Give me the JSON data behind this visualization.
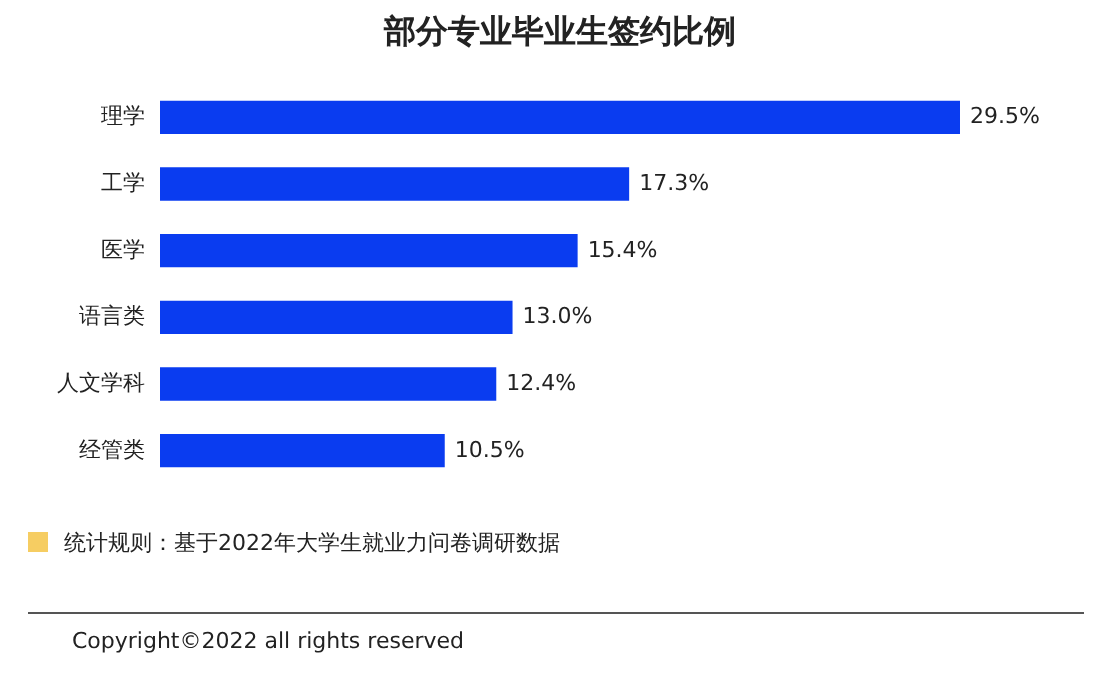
{
  "chart_data": {
    "type": "bar",
    "orientation": "horizontal",
    "title": "部分专业毕业生签约比例",
    "categories": [
      "理学",
      "工学",
      "医学",
      "语言类",
      "人文学科",
      "经管类"
    ],
    "values": [
      29.5,
      17.3,
      15.4,
      13.0,
      12.4,
      10.5
    ],
    "value_labels": [
      "29.5%",
      "17.3%",
      "15.4%",
      "13.0%",
      "12.4%",
      "10.5%"
    ],
    "color": "#0a3cf0",
    "annotations": [
      "统计规则：基于2022年大学生就业力问卷调研数据",
      "Copyright©2022 all rights reserved"
    ]
  }
}
